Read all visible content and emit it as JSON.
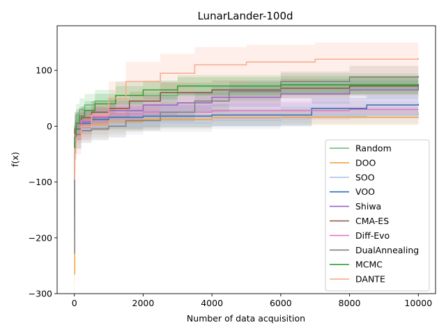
{
  "chart_data": {
    "type": "line",
    "title": "LunarLander-100d",
    "xlabel": "Number of data acquisition",
    "ylabel": "f(x)",
    "xlim": [
      -500,
      10500
    ],
    "ylim": [
      -300,
      180
    ],
    "xticks": [
      0,
      2000,
      4000,
      6000,
      8000,
      10000
    ],
    "yticks": [
      -300,
      -200,
      -100,
      0,
      100
    ],
    "xtick_labels": [
      "0",
      "2000",
      "4000",
      "6000",
      "8000",
      "10000"
    ],
    "ytick_labels": [
      "−300",
      "−200",
      "−100",
      "0",
      "100"
    ],
    "legend_position": "lower-right",
    "series": [
      {
        "name": "Random",
        "color": "#5cba75",
        "x": [
          0,
          10,
          50,
          150,
          300,
          600,
          1200,
          3000,
          6000,
          10000
        ],
        "y": [
          -40,
          0,
          20,
          30,
          38,
          45,
          55,
          72,
          75,
          76
        ],
        "band_lo": [
          -70,
          -25,
          -5,
          5,
          15,
          28,
          40,
          55,
          58,
          58
        ],
        "band_hi": [
          -10,
          25,
          40,
          50,
          58,
          65,
          80,
          92,
          95,
          96
        ]
      },
      {
        "name": "DOO",
        "color": "#f0a637",
        "x": [
          0,
          10,
          50,
          200,
          500,
          1000,
          2000,
          4000,
          6000,
          10000
        ],
        "y": [
          -265,
          -30,
          -10,
          0,
          3,
          8,
          12,
          15,
          16,
          17
        ],
        "band_lo": [
          -300,
          -60,
          -30,
          -20,
          -15,
          -10,
          -5,
          0,
          2,
          3
        ],
        "band_hi": [
          -230,
          0,
          10,
          18,
          20,
          22,
          26,
          30,
          31,
          32
        ]
      },
      {
        "name": "SOO",
        "color": "#b0c4e8",
        "x": [
          0,
          10,
          50,
          200,
          500,
          1000,
          2000,
          4000,
          6000,
          10000
        ],
        "y": [
          -180,
          -30,
          -15,
          -5,
          0,
          3,
          6,
          10,
          20,
          25
        ],
        "band_lo": [
          -250,
          -60,
          -40,
          -25,
          -20,
          -15,
          -10,
          -5,
          5,
          10
        ],
        "band_hi": [
          -110,
          0,
          10,
          15,
          18,
          20,
          22,
          28,
          35,
          40
        ]
      },
      {
        "name": "VOO",
        "color": "#2b72b4",
        "x": [
          0,
          10,
          50,
          200,
          500,
          1000,
          2000,
          4000,
          6900,
          8500,
          10000
        ],
        "y": [
          -200,
          -20,
          -5,
          5,
          12,
          16,
          18,
          20,
          32,
          38,
          40
        ],
        "band_lo": [
          -260,
          -50,
          -25,
          -15,
          -8,
          -5,
          -2,
          0,
          15,
          20,
          22
        ],
        "band_hi": [
          -140,
          10,
          15,
          25,
          32,
          36,
          38,
          40,
          50,
          55,
          58
        ]
      },
      {
        "name": "Shiwa",
        "color": "#9a63c4",
        "x": [
          0,
          10,
          50,
          200,
          500,
          1000,
          2000,
          3000,
          4000,
          6000,
          8000,
          10000
        ],
        "y": [
          -150,
          -10,
          0,
          8,
          15,
          28,
          38,
          42,
          52,
          58,
          65,
          72
        ],
        "band_lo": [
          -210,
          -40,
          -25,
          -10,
          -5,
          10,
          20,
          25,
          35,
          40,
          48,
          55
        ],
        "band_hi": [
          -90,
          20,
          25,
          30,
          35,
          45,
          55,
          60,
          70,
          76,
          82,
          90
        ]
      },
      {
        "name": "CMA-ES",
        "color": "#8b5141",
        "x": [
          0,
          10,
          50,
          200,
          500,
          1000,
          1600,
          2500,
          4000,
          6000,
          8000,
          10000
        ],
        "y": [
          -160,
          -5,
          5,
          15,
          25,
          32,
          45,
          60,
          65,
          68,
          72,
          75
        ],
        "band_lo": [
          -220,
          -35,
          -15,
          -5,
          5,
          15,
          25,
          40,
          45,
          50,
          55,
          58
        ],
        "band_hi": [
          -100,
          25,
          30,
          35,
          45,
          50,
          62,
          78,
          82,
          85,
          90,
          92
        ]
      },
      {
        "name": "Diff-Evo",
        "color": "#e376c0",
        "x": [
          0,
          10,
          50,
          200,
          500,
          1000,
          2000,
          4000,
          6000,
          8000,
          10000
        ],
        "y": [
          -170,
          -15,
          0,
          10,
          18,
          22,
          25,
          28,
          28,
          30,
          30
        ],
        "band_lo": [
          -230,
          -45,
          -25,
          -10,
          0,
          5,
          10,
          12,
          12,
          14,
          14
        ],
        "band_hi": [
          -110,
          15,
          22,
          28,
          35,
          38,
          40,
          44,
          44,
          46,
          46
        ]
      },
      {
        "name": "DualAnnealing",
        "color": "#7f7f7f",
        "x": [
          0,
          10,
          50,
          200,
          500,
          1000,
          1500,
          2500,
          3500,
          4500,
          6000,
          8000,
          10000
        ],
        "y": [
          -228,
          -30,
          -15,
          -8,
          -5,
          0,
          10,
          25,
          45,
          62,
          80,
          88,
          90
        ],
        "band_lo": [
          -280,
          -60,
          -40,
          -30,
          -25,
          -20,
          -8,
          8,
          25,
          40,
          55,
          65,
          68
        ],
        "band_hi": [
          -180,
          0,
          10,
          15,
          15,
          18,
          28,
          42,
          62,
          80,
          98,
          108,
          110
        ]
      },
      {
        "name": "MCMC",
        "color": "#2ca02c",
        "x": [
          0,
          10,
          50,
          150,
          300,
          600,
          1200,
          2000,
          3000,
          6000,
          10000
        ],
        "y": [
          -95,
          -20,
          5,
          18,
          28,
          40,
          55,
          65,
          72,
          74,
          75
        ],
        "band_lo": [
          -130,
          -50,
          -15,
          0,
          10,
          22,
          38,
          48,
          55,
          57,
          58
        ],
        "band_hi": [
          -60,
          10,
          25,
          35,
          45,
          58,
          72,
          82,
          88,
          90,
          92
        ]
      },
      {
        "name": "DANTE",
        "color": "#f9a98c",
        "x": [
          0,
          10,
          50,
          200,
          500,
          1000,
          1500,
          2500,
          3500,
          5000,
          7000,
          10000
        ],
        "y": [
          -95,
          -40,
          -20,
          0,
          20,
          50,
          80,
          95,
          110,
          115,
          120,
          122
        ],
        "band_lo": [
          -150,
          -80,
          -50,
          -25,
          -5,
          20,
          45,
          60,
          75,
          80,
          85,
          88
        ],
        "band_hi": [
          -40,
          0,
          10,
          25,
          45,
          80,
          115,
          130,
          142,
          146,
          150,
          154
        ]
      }
    ]
  }
}
